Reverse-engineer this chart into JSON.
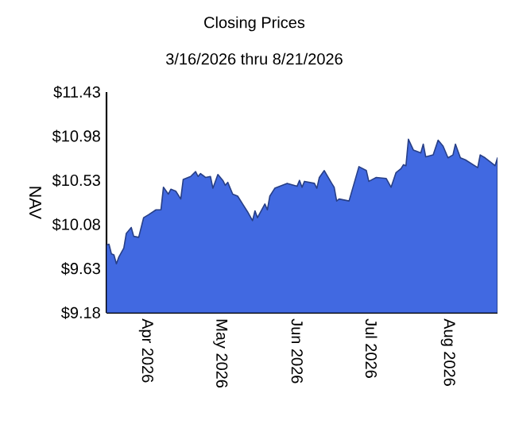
{
  "chart_data": {
    "type": "area",
    "title": "Closing Prices",
    "subtitle": "3/16/2026 thru 8/21/2026",
    "ylabel": "NAV",
    "x": [
      "2026-03-16",
      "2026-03-17",
      "2026-03-18",
      "2026-03-19",
      "2026-03-20",
      "2026-03-21",
      "2026-03-23",
      "2026-03-24",
      "2026-03-26",
      "2026-03-27",
      "2026-03-29",
      "2026-03-31",
      "2026-04-02",
      "2026-04-05",
      "2026-04-07",
      "2026-04-08",
      "2026-04-10",
      "2026-04-11",
      "2026-04-13",
      "2026-04-15",
      "2026-04-16",
      "2026-04-19",
      "2026-04-21",
      "2026-04-22",
      "2026-04-23",
      "2026-04-25",
      "2026-04-27",
      "2026-04-28",
      "2026-04-30",
      "2026-05-02",
      "2026-05-03",
      "2026-05-04",
      "2026-05-06",
      "2026-05-08",
      "2026-05-10",
      "2026-05-12",
      "2026-05-14",
      "2026-05-15",
      "2026-05-16",
      "2026-05-19",
      "2026-05-20",
      "2026-05-21",
      "2026-05-23",
      "2026-05-28",
      "2026-06-01",
      "2026-06-02",
      "2026-06-03",
      "2026-06-04",
      "2026-06-08",
      "2026-06-09",
      "2026-06-10",
      "2026-06-12",
      "2026-06-15",
      "2026-06-16",
      "2026-06-17",
      "2026-06-18",
      "2026-06-22",
      "2026-06-26",
      "2026-06-29",
      "2026-06-30",
      "2026-07-03",
      "2026-07-07",
      "2026-07-09",
      "2026-07-11",
      "2026-07-13",
      "2026-07-14",
      "2026-07-15",
      "2026-07-16",
      "2026-07-18",
      "2026-07-21",
      "2026-07-22",
      "2026-07-23",
      "2026-07-26",
      "2026-07-28",
      "2026-07-30",
      "2026-08-01",
      "2026-08-03",
      "2026-08-04",
      "2026-08-06",
      "2026-08-08",
      "2026-08-13",
      "2026-08-14",
      "2026-08-16",
      "2026-08-19",
      "2026-08-20",
      "2026-08-21"
    ],
    "values": [
      9.87,
      9.88,
      9.78,
      9.77,
      9.68,
      9.75,
      9.84,
      9.99,
      10.05,
      9.96,
      9.95,
      10.15,
      10.18,
      10.23,
      10.23,
      10.46,
      10.39,
      10.44,
      10.42,
      10.34,
      10.54,
      10.57,
      10.62,
      10.57,
      10.6,
      10.56,
      10.57,
      10.45,
      10.59,
      10.53,
      10.48,
      10.51,
      10.39,
      10.37,
      10.29,
      10.21,
      10.12,
      10.22,
      10.15,
      10.29,
      10.23,
      10.37,
      10.45,
      10.5,
      10.47,
      10.53,
      10.46,
      10.52,
      10.5,
      10.45,
      10.56,
      10.63,
      10.5,
      10.46,
      10.32,
      10.34,
      10.32,
      10.67,
      10.63,
      10.52,
      10.56,
      10.55,
      10.46,
      10.61,
      10.65,
      10.69,
      10.68,
      10.95,
      10.84,
      10.81,
      10.9,
      10.77,
      10.79,
      10.94,
      10.88,
      10.76,
      10.79,
      10.9,
      10.76,
      10.74,
      10.66,
      10.79,
      10.76,
      10.7,
      10.68,
      10.76
    ],
    "color": "#4169e1",
    "xlim": [
      "2026-03-16",
      "2026-08-21"
    ],
    "xticks": [
      {
        "value": "2026-04-01",
        "label": "Apr 2026"
      },
      {
        "value": "2026-05-01",
        "label": "May 2026"
      },
      {
        "value": "2026-06-01",
        "label": "Jun 2026"
      },
      {
        "value": "2026-07-01",
        "label": "Jul 2026"
      },
      {
        "value": "2026-08-01",
        "label": "Aug 2026"
      }
    ],
    "ylim": [
      9.18,
      11.43
    ],
    "yticks": [
      {
        "value": 9.18,
        "label": "$9.18"
      },
      {
        "value": 9.63,
        "label": "$9.63"
      },
      {
        "value": 10.08,
        "label": "$10.08"
      },
      {
        "value": 10.53,
        "label": "$10.53"
      },
      {
        "value": 10.98,
        "label": "$10.98"
      },
      {
        "value": 11.43,
        "label": "$11.43"
      }
    ],
    "grid": false
  }
}
